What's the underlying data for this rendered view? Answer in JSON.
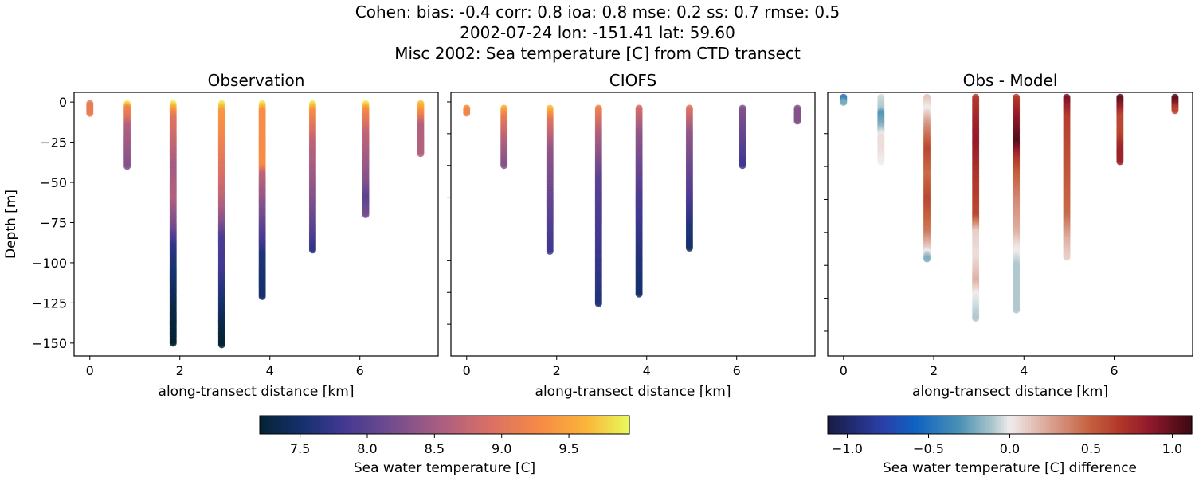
{
  "figure": {
    "title_lines": [
      "Cohen: bias: -0.4  corr: 0.8  ioa: 0.8  mse: 0.2  ss: 0.7  rmse: 0.5",
      "2002-07-24 lon: -151.41 lat: 59.60",
      "Misc 2002: Sea temperature [C] from CTD transect"
    ]
  },
  "chart_data": [
    {
      "type": "scatter",
      "title": "Observation",
      "xlabel": "along-transect distance [km]",
      "ylabel": "Depth [m]",
      "xlim": [
        -0.35,
        7.74
      ],
      "ylim": [
        -158,
        6
      ],
      "xticks": [
        0,
        2,
        4,
        6
      ],
      "yticks": [
        0,
        -25,
        -50,
        -75,
        -100,
        -125,
        -150
      ],
      "show_ytick_labels": true,
      "colormap": "thermal",
      "columns": [
        {
          "x": 0.0,
          "profile": [
            [
              -1,
              9.1
            ],
            [
              -7,
              9.1
            ]
          ]
        },
        {
          "x": 0.83,
          "profile": [
            [
              -1,
              9.9
            ],
            [
              -4,
              9.2
            ],
            [
              -10,
              9.0
            ],
            [
              -15,
              8.6
            ],
            [
              -40,
              8.3
            ]
          ]
        },
        {
          "x": 1.85,
          "profile": [
            [
              -1,
              9.9
            ],
            [
              -5,
              9.4
            ],
            [
              -10,
              9.0
            ],
            [
              -40,
              8.5
            ],
            [
              -60,
              8.6
            ],
            [
              -78,
              8.2
            ],
            [
              -90,
              7.7
            ],
            [
              -110,
              7.5
            ],
            [
              -130,
              7.3
            ],
            [
              -150,
              7.2
            ]
          ]
        },
        {
          "x": 2.93,
          "profile": [
            [
              -1,
              9.9
            ],
            [
              -6,
              9.4
            ],
            [
              -25,
              9.2
            ],
            [
              -60,
              8.7
            ],
            [
              -75,
              8.3
            ],
            [
              -85,
              7.9
            ],
            [
              -105,
              7.8
            ],
            [
              -120,
              7.6
            ],
            [
              -140,
              7.3
            ],
            [
              -151,
              7.2
            ]
          ]
        },
        {
          "x": 3.83,
          "profile": [
            [
              -1,
              9.9
            ],
            [
              -6,
              9.3
            ],
            [
              -40,
              9.3
            ],
            [
              -45,
              8.7
            ],
            [
              -70,
              8.2
            ],
            [
              -88,
              7.8
            ],
            [
              -95,
              7.6
            ],
            [
              -121,
              7.5
            ]
          ]
        },
        {
          "x": 4.95,
          "profile": [
            [
              -1,
              9.9
            ],
            [
              -6,
              9.3
            ],
            [
              -25,
              8.7
            ],
            [
              -60,
              8.3
            ],
            [
              -80,
              8.0
            ],
            [
              -92,
              7.7
            ]
          ]
        },
        {
          "x": 6.13,
          "profile": [
            [
              -1,
              9.9
            ],
            [
              -5,
              9.3
            ],
            [
              -20,
              8.7
            ],
            [
              -50,
              8.3
            ],
            [
              -60,
              8.0
            ],
            [
              -70,
              8.2
            ]
          ]
        },
        {
          "x": 7.35,
          "profile": [
            [
              -1,
              9.7
            ],
            [
              -8,
              9.2
            ],
            [
              -15,
              8.6
            ],
            [
              -32,
              8.6
            ]
          ]
        }
      ]
    },
    {
      "type": "scatter",
      "title": "CIOFS",
      "xlabel": "along-transect distance [km]",
      "xlim": [
        -0.35,
        7.74
      ],
      "ylim": [
        -160,
        6
      ],
      "xticks": [
        0,
        2,
        4,
        6
      ],
      "yticks": [
        0,
        -20,
        -40,
        -60,
        -80,
        -100,
        -120,
        -140
      ],
      "show_ytick_labels": false,
      "colormap": "thermal",
      "columns": [
        {
          "x": 0.0,
          "profile": [
            [
              -4,
              9.3
            ],
            [
              -7,
              9.2
            ]
          ]
        },
        {
          "x": 0.83,
          "profile": [
            [
              -4,
              9.6
            ],
            [
              -10,
              9.1
            ],
            [
              -25,
              8.6
            ],
            [
              -40,
              8.3
            ]
          ]
        },
        {
          "x": 1.85,
          "profile": [
            [
              -4,
              9.7
            ],
            [
              -12,
              9.0
            ],
            [
              -30,
              8.4
            ],
            [
              -60,
              8.1
            ],
            [
              -94,
              7.8
            ]
          ]
        },
        {
          "x": 2.93,
          "profile": [
            [
              -4,
              9.2
            ],
            [
              -20,
              8.6
            ],
            [
              -50,
              8.0
            ],
            [
              -90,
              7.8
            ],
            [
              -127,
              7.6
            ]
          ]
        },
        {
          "x": 3.83,
          "profile": [
            [
              -4,
              8.9
            ],
            [
              -20,
              8.4
            ],
            [
              -60,
              7.9
            ],
            [
              -100,
              7.6
            ],
            [
              -121,
              7.5
            ]
          ]
        },
        {
          "x": 4.95,
          "profile": [
            [
              -4,
              9.0
            ],
            [
              -20,
              8.4
            ],
            [
              -60,
              7.9
            ],
            [
              -80,
              7.6
            ],
            [
              -92,
              7.5
            ]
          ]
        },
        {
          "x": 6.13,
          "profile": [
            [
              -4,
              8.3
            ],
            [
              -20,
              8.1
            ],
            [
              -40,
              7.8
            ]
          ]
        },
        {
          "x": 7.35,
          "profile": [
            [
              -4,
              8.3
            ],
            [
              -12,
              8.3
            ]
          ]
        }
      ]
    },
    {
      "type": "scatter",
      "title": "Obs - Model",
      "xlabel": "along-transect distance [km]",
      "xlim": [
        -0.35,
        7.74
      ],
      "ylim": [
        -155,
        5
      ],
      "xticks": [
        0,
        2,
        4,
        6
      ],
      "yticks": [
        -20,
        -40,
        -60,
        -80,
        -100,
        -120,
        -140
      ],
      "show_ytick_labels": false,
      "colormap": "balance",
      "columns": [
        {
          "x": 0.0,
          "profile": [
            [
              2,
              -0.5
            ],
            [
              0,
              -0.3
            ],
            [
              -1,
              -0.2
            ]
          ]
        },
        {
          "x": 0.83,
          "profile": [
            [
              2,
              -0.05
            ],
            [
              -5,
              -0.1
            ],
            [
              -8,
              -0.3
            ],
            [
              -15,
              -0.2
            ],
            [
              -22,
              0.05
            ],
            [
              -30,
              0.05
            ],
            [
              -37,
              0.0
            ]
          ]
        },
        {
          "x": 1.85,
          "profile": [
            [
              2,
              0.15
            ],
            [
              -5,
              0.0
            ],
            [
              -15,
              0.3
            ],
            [
              -30,
              0.6
            ],
            [
              -45,
              0.45
            ],
            [
              -60,
              0.6
            ],
            [
              -80,
              0.4
            ],
            [
              -90,
              0.1
            ],
            [
              -96,
              -0.2
            ]
          ]
        },
        {
          "x": 2.93,
          "profile": [
            [
              2,
              0.65
            ],
            [
              -15,
              0.8
            ],
            [
              -25,
              0.85
            ],
            [
              -45,
              0.7
            ],
            [
              -70,
              0.6
            ],
            [
              -80,
              0.1
            ],
            [
              -95,
              0.05
            ],
            [
              -110,
              0.2
            ],
            [
              -118,
              0.0
            ],
            [
              -132,
              -0.1
            ]
          ]
        },
        {
          "x": 3.83,
          "profile": [
            [
              2,
              0.65
            ],
            [
              -10,
              0.85
            ],
            [
              -25,
              1.05
            ],
            [
              -35,
              0.7
            ],
            [
              -45,
              0.5
            ],
            [
              -60,
              0.35
            ],
            [
              -80,
              0.2
            ],
            [
              -88,
              0.05
            ],
            [
              -100,
              -0.1
            ],
            [
              -127,
              -0.1
            ]
          ]
        },
        {
          "x": 4.95,
          "profile": [
            [
              2,
              0.95
            ],
            [
              -10,
              0.65
            ],
            [
              -40,
              0.55
            ],
            [
              -70,
              0.45
            ],
            [
              -85,
              0.2
            ],
            [
              -95,
              0.1
            ]
          ]
        },
        {
          "x": 6.13,
          "profile": [
            [
              2,
              1.05
            ],
            [
              -10,
              0.6
            ],
            [
              -20,
              0.6
            ],
            [
              -30,
              0.8
            ],
            [
              -37,
              0.8
            ]
          ]
        },
        {
          "x": 7.35,
          "profile": [
            [
              2,
              1.05
            ],
            [
              -2,
              0.9
            ],
            [
              -4,
              0.7
            ],
            [
              -6,
              0.6
            ]
          ]
        }
      ]
    }
  ],
  "colorbars": [
    {
      "label": "Sea water temperature [C]",
      "colormap": "thermal",
      "range": [
        7.2,
        9.95
      ],
      "ticks": [
        "7.5",
        "8.0",
        "8.5",
        "9.0",
        "9.5"
      ]
    },
    {
      "label": "Sea water temperature [C] difference",
      "colormap": "balance",
      "range": [
        -1.12,
        1.12
      ],
      "ticks": [
        "−1.0",
        "−0.5",
        "0.0",
        "0.5",
        "1.0"
      ]
    }
  ],
  "colormaps": {
    "thermal": [
      [
        0,
        "#042333"
      ],
      [
        0.12,
        "#17316f"
      ],
      [
        0.22,
        "#403891"
      ],
      [
        0.35,
        "#6f4b8e"
      ],
      [
        0.48,
        "#a65d82"
      ],
      [
        0.62,
        "#d96f66"
      ],
      [
        0.76,
        "#f68b45"
      ],
      [
        0.88,
        "#fbb33a"
      ],
      [
        1,
        "#e8fa5b"
      ]
    ],
    "balance": [
      [
        0,
        "#181c43"
      ],
      [
        0.15,
        "#2a3fa8"
      ],
      [
        0.24,
        "#0f62c2"
      ],
      [
        0.36,
        "#4a90b4"
      ],
      [
        0.45,
        "#a8c4ca"
      ],
      [
        0.5,
        "#f1ecec"
      ],
      [
        0.6,
        "#dca99a"
      ],
      [
        0.72,
        "#c4603f"
      ],
      [
        0.8,
        "#b2382a"
      ],
      [
        0.88,
        "#921a2c"
      ],
      [
        1,
        "#3c0912"
      ]
    ]
  }
}
